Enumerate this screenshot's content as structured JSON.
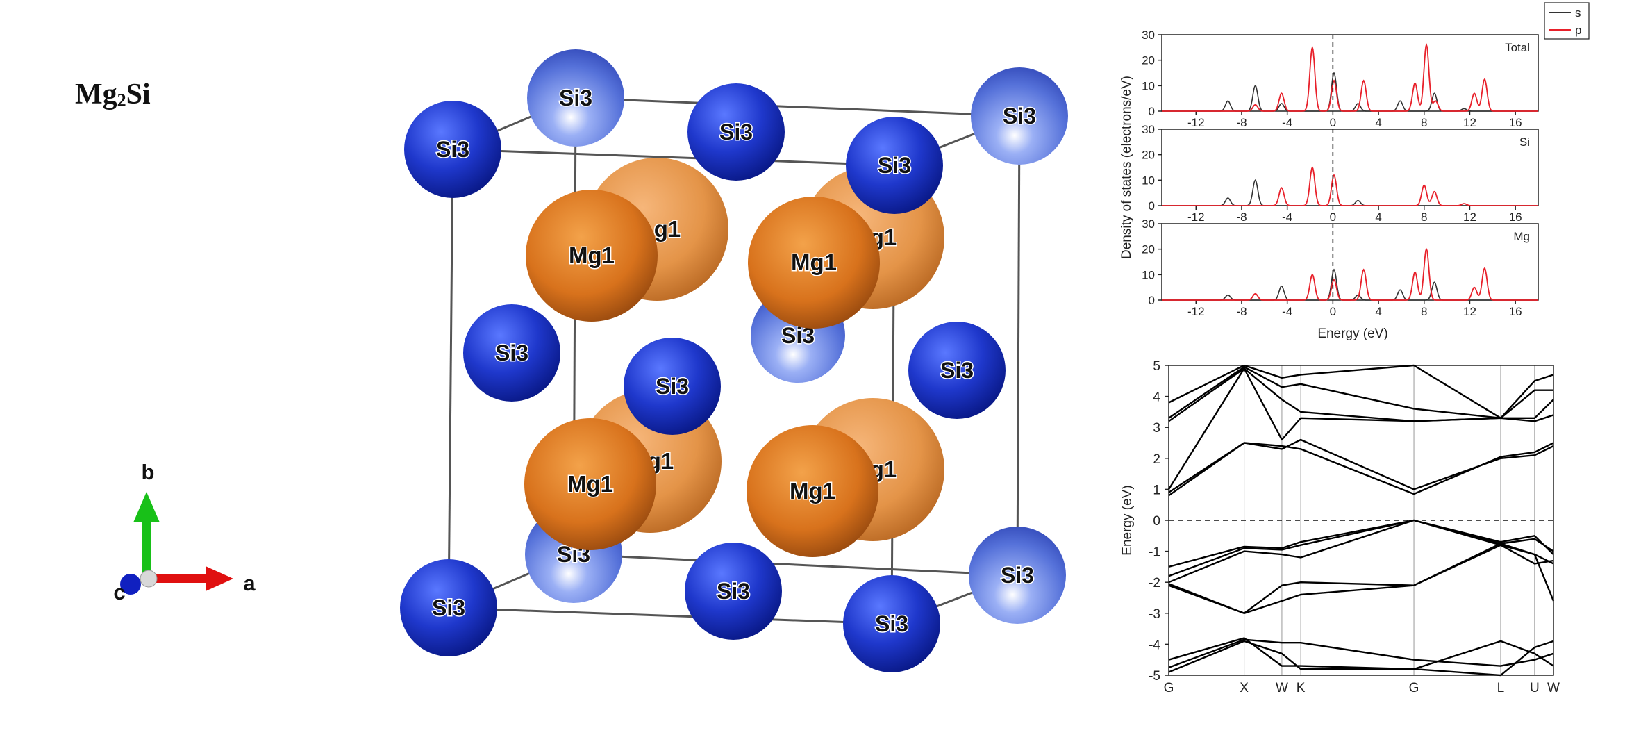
{
  "structure": {
    "formula_base": "Mg",
    "formula_sub": "2",
    "formula_tail": "Si",
    "si_label": "Si3",
    "mg_label": "Mg1",
    "axes": {
      "a": "a",
      "b": "b",
      "c": "c"
    },
    "colors": {
      "si_front": "#1b2fc0",
      "si_back": "#5470d8",
      "mg": "#d9761e",
      "mg_back": "#e8964c",
      "axis_a": "#e01010",
      "axis_b": "#18c018",
      "axis_c": "#1020c0"
    }
  },
  "dos_chart": {
    "type": "line",
    "ylabel": "Density of states (electrons/eV)",
    "xlabel": "Energy (eV)",
    "xlim": [
      -15,
      18
    ],
    "xticks": [
      -12,
      -8,
      -4,
      0,
      4,
      8,
      12,
      16
    ],
    "fermi_level": 0,
    "legend": [
      {
        "name": "s",
        "color": "#333333"
      },
      {
        "name": "p",
        "color": "#e8202a"
      }
    ],
    "panels": [
      {
        "label": "Total",
        "ylim": [
          0,
          30
        ],
        "yticks": [
          0,
          10,
          20,
          30
        ],
        "s": [
          [
            -9.2,
            4
          ],
          [
            -6.8,
            10
          ],
          [
            -4.5,
            3
          ],
          [
            0.1,
            15
          ],
          [
            2.2,
            3
          ],
          [
            5.9,
            4
          ],
          [
            8.9,
            7
          ],
          [
            11.5,
            1
          ]
        ],
        "p": [
          [
            -6.8,
            2.5
          ],
          [
            -4.5,
            7
          ],
          [
            -1.8,
            25
          ],
          [
            0.1,
            12
          ],
          [
            2.7,
            12
          ],
          [
            7.2,
            11
          ],
          [
            8.2,
            26
          ],
          [
            9.0,
            4
          ],
          [
            12.4,
            7
          ],
          [
            13.3,
            12.5
          ]
        ]
      },
      {
        "label": "Si",
        "ylim": [
          0,
          30
        ],
        "yticks": [
          0,
          10,
          20,
          30
        ],
        "s": [
          [
            -9.2,
            3
          ],
          [
            -6.8,
            10
          ],
          [
            2.2,
            2
          ]
        ],
        "p": [
          [
            -4.5,
            7
          ],
          [
            -1.8,
            15
          ],
          [
            0.1,
            12
          ],
          [
            8.0,
            8
          ],
          [
            8.9,
            5.5
          ],
          [
            11.5,
            0.8
          ]
        ]
      },
      {
        "label": "Mg",
        "ylim": [
          0,
          30
        ],
        "yticks": [
          0,
          10,
          20,
          30
        ],
        "s": [
          [
            -9.2,
            2
          ],
          [
            -4.5,
            5.5
          ],
          [
            0.1,
            12
          ],
          [
            2.2,
            2
          ],
          [
            5.9,
            4
          ],
          [
            8.9,
            7
          ]
        ],
        "p": [
          [
            -6.8,
            2.5
          ],
          [
            -1.8,
            10
          ],
          [
            0.1,
            8
          ],
          [
            2.7,
            12
          ],
          [
            7.2,
            11
          ],
          [
            8.2,
            20
          ],
          [
            12.4,
            5
          ],
          [
            13.3,
            12.5
          ]
        ]
      }
    ]
  },
  "band_chart": {
    "type": "line",
    "ylabel": "Energy (eV)",
    "ylim": [
      -5,
      5
    ],
    "yticks": [
      -5,
      -4,
      -3,
      -2,
      -1,
      0,
      1,
      2,
      3,
      4,
      5
    ],
    "kpoints": [
      {
        "label": "G",
        "k": 0
      },
      {
        "label": "X",
        "k": 1.0
      },
      {
        "label": "W",
        "k": 1.5
      },
      {
        "label": "K",
        "k": 1.75
      },
      {
        "label": "G",
        "k": 3.25
      },
      {
        "label": "L",
        "k": 4.4
      },
      {
        "label": "U",
        "k": 4.85
      },
      {
        "label": "W",
        "k": 5.1
      }
    ],
    "bands": [
      [
        -4.9,
        -3.9,
        -4.3,
        -4.8,
        -4.8,
        -3.9,
        -4.3,
        -4.7
      ],
      [
        -4.75,
        -3.85,
        -3.95,
        -3.95,
        -4.5,
        -4.7,
        -4.5,
        -4.3
      ],
      [
        -4.5,
        -3.8,
        -4.7,
        -4.7,
        -4.8,
        -5.0,
        -4.1,
        -3.9
      ],
      [
        -2.1,
        -3.0,
        -2.1,
        -2.0,
        -2.1,
        -0.8,
        -1.1,
        -1.4
      ],
      [
        -2.05,
        -3.0,
        -2.6,
        -2.4,
        -2.1,
        -0.75,
        -1.1,
        -2.6
      ],
      [
        -2.0,
        -1.0,
        -1.1,
        -1.2,
        0.0,
        -0.8,
        -1.4,
        -1.3
      ],
      [
        -1.8,
        -0.9,
        -0.95,
        -0.8,
        0.0,
        -0.75,
        -0.6,
        -1.0
      ],
      [
        -1.5,
        -0.85,
        -0.9,
        -0.7,
        0.0,
        -0.7,
        -0.5,
        -1.1
      ],
      [
        0.8,
        2.5,
        2.4,
        2.3,
        0.85,
        2.05,
        2.2,
        2.5
      ],
      [
        0.9,
        2.5,
        2.3,
        2.6,
        1.0,
        2.0,
        2.1,
        2.4
      ],
      [
        1.0,
        4.9,
        2.6,
        3.3,
        3.2,
        3.3,
        3.2,
        3.4
      ],
      [
        3.2,
        4.9,
        3.9,
        3.5,
        3.2,
        3.3,
        3.3,
        3.9
      ],
      [
        3.3,
        4.95,
        4.3,
        4.4,
        3.6,
        3.3,
        4.2,
        4.2
      ],
      [
        3.8,
        5.0,
        4.6,
        4.7,
        5.1,
        3.3,
        4.5,
        4.7
      ]
    ]
  }
}
